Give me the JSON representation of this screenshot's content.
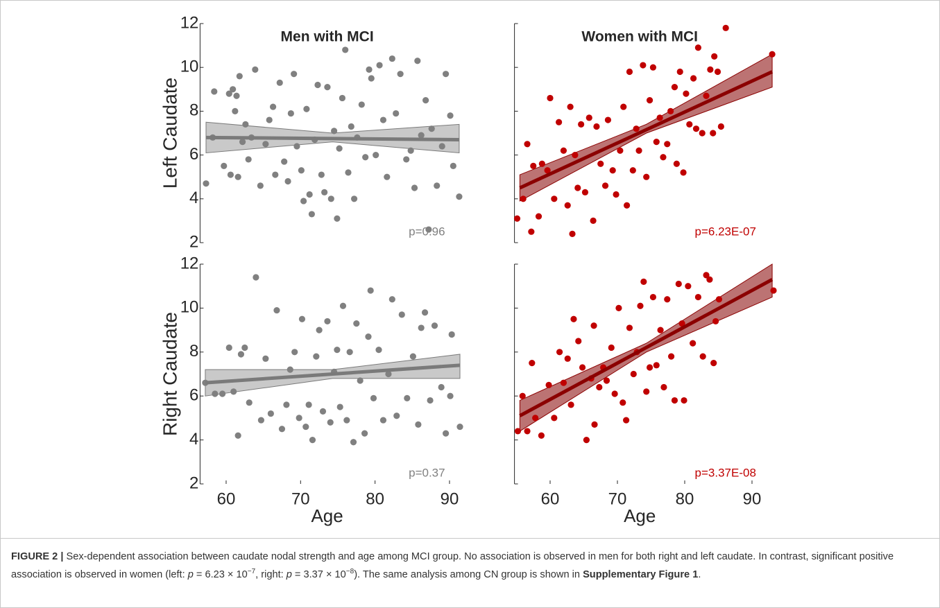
{
  "chart_data": [
    {
      "type": "scatter",
      "title": "Men with MCI",
      "ylabel": "Left Caudate",
      "color": "#808080",
      "x": [
        57.3,
        58.2,
        58.4,
        59.7,
        60.4,
        60.6,
        60.9,
        61.2,
        61.4,
        61.6,
        61.8,
        62.2,
        62.6,
        63.0,
        63.4,
        63.9,
        64.6,
        65.3,
        65.8,
        66.3,
        66.6,
        67.2,
        67.8,
        68.3,
        68.7,
        69.1,
        69.5,
        70.1,
        70.4,
        70.8,
        71.2,
        71.5,
        71.9,
        72.3,
        72.8,
        73.2,
        73.6,
        74.1,
        74.5,
        74.9,
        75.2,
        75.6,
        76.0,
        76.4,
        76.8,
        77.2,
        77.6,
        78.2,
        78.7,
        79.2,
        79.5,
        80.1,
        80.6,
        81.1,
        81.6,
        82.3,
        82.8,
        83.4,
        84.2,
        84.8,
        85.3,
        85.7,
        86.2,
        86.8,
        87.2,
        87.6,
        88.3,
        89.0,
        89.5,
        90.1,
        90.5,
        91.3
      ],
      "y": [
        4.7,
        6.8,
        8.9,
        5.5,
        8.8,
        5.1,
        9.0,
        8.0,
        8.7,
        5.0,
        9.6,
        6.6,
        7.4,
        5.8,
        6.8,
        9.9,
        4.6,
        6.5,
        7.6,
        8.2,
        5.1,
        9.3,
        5.7,
        4.8,
        7.9,
        9.7,
        6.4,
        5.3,
        3.9,
        8.1,
        4.2,
        3.3,
        6.7,
        9.2,
        5.1,
        4.3,
        9.1,
        4.0,
        7.1,
        3.1,
        6.3,
        8.6,
        10.8,
        5.2,
        7.3,
        4.0,
        6.8,
        8.3,
        5.9,
        9.9,
        9.5,
        6.0,
        10.1,
        7.6,
        5.0,
        10.4,
        7.9,
        9.7,
        5.8,
        6.2,
        4.5,
        10.3,
        6.9,
        8.5,
        2.6,
        7.2,
        4.6,
        6.4,
        9.7,
        7.8,
        5.5,
        4.1
      ],
      "fit_color": "#7a7a7a",
      "band_color": "#bfbfbf",
      "fit_x": [
        57.3,
        91.3
      ],
      "fit_y": [
        6.8,
        6.7
      ],
      "band_x": [
        57.3,
        74.3,
        91.3
      ],
      "band_upper": [
        7.5,
        7.0,
        7.4
      ],
      "band_lower": [
        6.1,
        6.6,
        6.1
      ],
      "annotation": "p=0.96",
      "xlim": [
        56.5,
        92.5
      ],
      "ylim": [
        2,
        12
      ],
      "yticks": [
        2,
        4,
        6,
        8,
        10,
        12
      ],
      "show_ytick_labels": true
    },
    {
      "type": "scatter",
      "title": "Women with MCI",
      "color": "#c00000",
      "x": [
        55.1,
        56.0,
        56.6,
        57.2,
        57.5,
        58.3,
        58.8,
        59.6,
        60.0,
        60.6,
        61.3,
        62.0,
        62.6,
        63.0,
        63.3,
        63.7,
        64.1,
        64.6,
        65.2,
        65.8,
        66.4,
        66.9,
        67.5,
        68.2,
        68.6,
        69.3,
        69.8,
        70.4,
        70.9,
        71.4,
        71.8,
        72.3,
        72.8,
        73.2,
        73.8,
        74.3,
        74.8,
        75.3,
        75.8,
        76.3,
        76.8,
        77.4,
        77.9,
        78.5,
        78.8,
        79.3,
        79.8,
        80.2,
        80.7,
        81.3,
        82.0,
        82.6,
        83.2,
        83.8,
        84.4,
        84.9,
        85.4,
        86.1,
        93.0,
        84.2,
        81.7
      ],
      "y": [
        3.1,
        4.0,
        6.5,
        2.5,
        5.5,
        3.2,
        5.6,
        5.3,
        8.6,
        4.0,
        7.5,
        6.2,
        3.7,
        8.2,
        2.4,
        6.0,
        4.5,
        7.4,
        4.3,
        7.7,
        3.0,
        7.3,
        5.6,
        4.6,
        7.6,
        5.3,
        4.2,
        6.2,
        8.2,
        3.7,
        9.8,
        5.3,
        7.2,
        6.2,
        10.1,
        5.0,
        8.5,
        10.0,
        6.6,
        7.7,
        5.9,
        6.5,
        8.0,
        9.1,
        5.6,
        9.8,
        5.2,
        8.8,
        7.4,
        9.5,
        10.9,
        7.0,
        8.7,
        9.9,
        10.5,
        9.8,
        7.3,
        11.8,
        10.6,
        7.0,
        7.2
      ],
      "fit_color": "#8b0000",
      "band_color": "#b05a5a",
      "fit_x": [
        55.5,
        93.0
      ],
      "fit_y": [
        4.5,
        9.8
      ],
      "band_x": [
        55.5,
        74.3,
        93.0
      ],
      "band_upper": [
        5.1,
        7.4,
        10.6
      ],
      "band_lower": [
        3.9,
        7.0,
        9.1
      ],
      "annotation": "p=6.23E-07",
      "xlim": [
        54.7,
        94
      ],
      "ylim": [
        2,
        12
      ],
      "yticks": [
        2,
        4,
        6,
        8,
        10,
        12
      ],
      "show_ytick_labels": false
    },
    {
      "type": "scatter",
      "ylabel": "Right Caudate",
      "xlabel": "Age",
      "color": "#808080",
      "x": [
        57.2,
        58.5,
        59.5,
        60.4,
        61.0,
        61.6,
        62.0,
        62.5,
        63.1,
        64.0,
        64.7,
        65.3,
        66.0,
        66.8,
        67.5,
        68.1,
        68.6,
        69.2,
        69.8,
        70.2,
        70.7,
        71.1,
        71.6,
        72.1,
        72.5,
        73.0,
        73.6,
        74.0,
        74.5,
        74.9,
        75.3,
        75.7,
        76.2,
        76.6,
        77.1,
        77.5,
        78.0,
        78.6,
        79.1,
        79.4,
        79.8,
        80.5,
        81.1,
        81.8,
        82.3,
        82.9,
        83.6,
        84.3,
        85.1,
        85.8,
        86.2,
        86.7,
        87.4,
        88.0,
        88.9,
        89.5,
        90.1,
        90.3,
        91.4
      ],
      "y": [
        6.6,
        6.1,
        6.1,
        8.2,
        6.2,
        4.2,
        7.9,
        8.2,
        5.7,
        11.4,
        4.9,
        7.7,
        5.2,
        9.9,
        4.5,
        5.6,
        7.2,
        8.0,
        5.0,
        9.5,
        4.6,
        5.6,
        4.0,
        7.8,
        9.0,
        5.3,
        9.4,
        4.8,
        7.1,
        8.1,
        5.5,
        10.1,
        4.9,
        8.0,
        3.9,
        9.3,
        6.7,
        4.3,
        8.7,
        10.8,
        5.9,
        8.1,
        4.9,
        7.0,
        10.4,
        5.1,
        9.7,
        5.9,
        7.8,
        4.7,
        9.1,
        9.8,
        5.8,
        9.2,
        6.4,
        4.3,
        6.0,
        8.8,
        4.6
      ],
      "fit_color": "#7a7a7a",
      "band_color": "#bfbfbf",
      "fit_x": [
        57.2,
        91.4
      ],
      "fit_y": [
        6.6,
        7.4
      ],
      "band_x": [
        57.2,
        74.3,
        91.4
      ],
      "band_upper": [
        7.2,
        7.2,
        7.9
      ],
      "band_lower": [
        6.0,
        6.8,
        6.8
      ],
      "annotation": "p=0.37",
      "xlim": [
        56.5,
        92.5
      ],
      "ylim": [
        2,
        12
      ],
      "xticks": [
        60,
        70,
        80,
        90
      ],
      "yticks": [
        2,
        4,
        6,
        8,
        10,
        12
      ],
      "show_ytick_labels": true
    },
    {
      "type": "scatter",
      "xlabel": "Age",
      "color": "#c00000",
      "x": [
        55.2,
        55.9,
        56.6,
        57.3,
        57.8,
        58.7,
        59.8,
        60.6,
        61.4,
        62.0,
        62.6,
        63.1,
        63.5,
        64.2,
        64.8,
        65.4,
        66.1,
        66.5,
        66.6,
        67.3,
        67.9,
        68.4,
        69.1,
        69.6,
        70.2,
        70.8,
        71.3,
        71.8,
        72.4,
        72.9,
        73.4,
        73.9,
        74.3,
        74.8,
        75.3,
        75.8,
        76.4,
        76.9,
        77.4,
        78.0,
        78.5,
        79.1,
        79.6,
        79.9,
        80.5,
        81.2,
        82.0,
        82.7,
        83.2,
        83.7,
        84.3,
        84.6,
        85.1,
        93.2
      ],
      "y": [
        4.4,
        6.0,
        4.4,
        7.5,
        5.0,
        4.2,
        6.5,
        5.0,
        8.0,
        6.6,
        7.7,
        5.6,
        9.5,
        8.5,
        7.3,
        4.0,
        6.8,
        9.2,
        4.7,
        6.4,
        7.3,
        6.7,
        8.2,
        6.1,
        10.0,
        5.7,
        4.9,
        9.1,
        7.0,
        8.0,
        10.1,
        11.2,
        6.2,
        7.3,
        10.5,
        7.4,
        9.0,
        6.4,
        10.4,
        7.8,
        5.8,
        11.1,
        9.3,
        5.8,
        11.0,
        8.4,
        10.5,
        7.8,
        11.5,
        11.3,
        7.5,
        9.4,
        10.4,
        10.8
      ],
      "fit_color": "#8b0000",
      "band_color": "#b05a5a",
      "fit_x": [
        55.5,
        93.0
      ],
      "fit_y": [
        5.1,
        11.3
      ],
      "band_x": [
        55.5,
        74.3,
        93.0
      ],
      "band_upper": [
        5.8,
        8.4,
        12.0
      ],
      "band_lower": [
        4.4,
        8.0,
        10.5
      ],
      "annotation": "p=3.37E-08",
      "xlim": [
        54.7,
        94
      ],
      "ylim": [
        2,
        12
      ],
      "xticks": [
        60,
        70,
        80,
        90
      ],
      "yticks": [
        2,
        4,
        6,
        8,
        10,
        12
      ],
      "show_ytick_labels": false
    }
  ],
  "caption": {
    "parts": [
      "FIGURE 2 |",
      " Sex-dependent association between caudate nodal strength and age among MCI group. No association is observed in men for both right and left caudate. In contrast, significant positive association is observed in women (left: ",
      "p",
      " = 6.23 × 10",
      "−7",
      ", right: ",
      "p",
      " = 3.37 × 10",
      "−8",
      "). The same analysis among CN group is shown in ",
      "Supplementary Figure 1",
      "."
    ]
  }
}
